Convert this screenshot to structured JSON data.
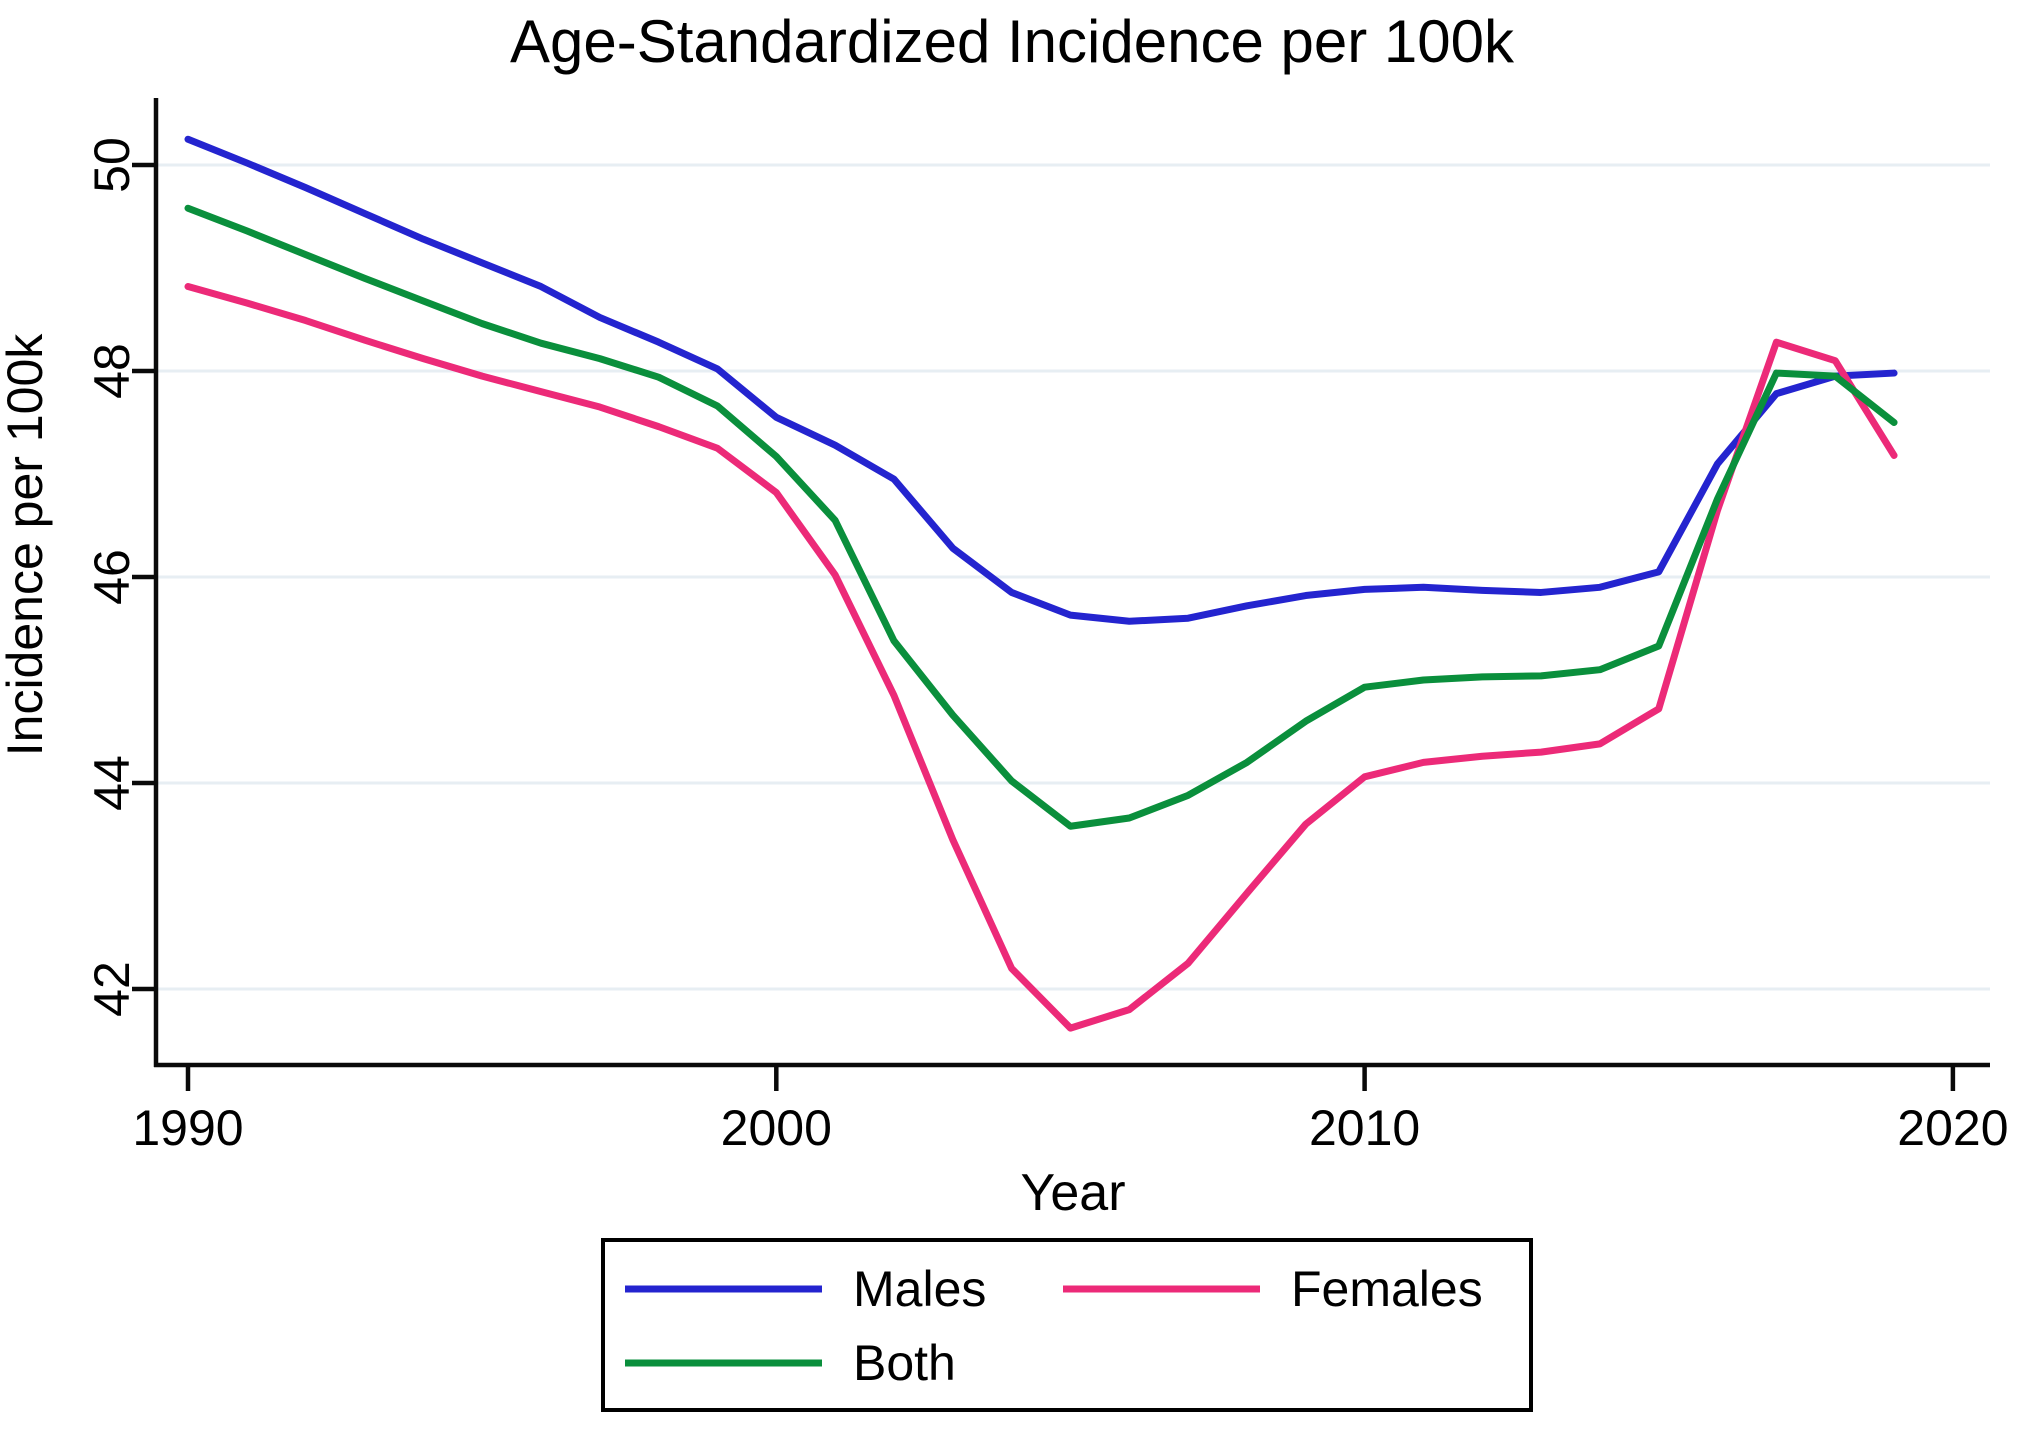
{
  "title": {
    "text": "Age-Standardized Incidence per 100k",
    "color": "#203a64"
  },
  "axes": {
    "x": {
      "label": "Year",
      "ticks": [
        1990,
        2000,
        2010,
        2020
      ]
    },
    "y": {
      "label": "Incidence per 100k",
      "ticks": [
        50,
        48,
        46,
        44,
        42
      ]
    }
  },
  "chart_data": {
    "type": "line",
    "title": "Age-Standardized Incidence per 100k",
    "xlabel": "Year",
    "ylabel": "Incidence per 100k",
    "xlim": [
      1990,
      2020
    ],
    "ylim": [
      41.3,
      50.6
    ],
    "grid": true,
    "legend_position": "bottom-box",
    "x": [
      1990,
      1991,
      1992,
      1993,
      1994,
      1995,
      1996,
      1997,
      1998,
      1999,
      2000,
      2001,
      2002,
      2003,
      2004,
      2005,
      2006,
      2007,
      2008,
      2009,
      2010,
      2011,
      2012,
      2013,
      2014,
      2015,
      2016,
      2017,
      2018,
      2019
    ],
    "series": [
      {
        "name": "Males",
        "color": "#2424cf",
        "values": [
          50.25,
          50.02,
          49.78,
          49.53,
          49.28,
          49.05,
          48.82,
          48.52,
          48.28,
          48.02,
          47.55,
          47.28,
          46.95,
          46.28,
          45.85,
          45.63,
          45.57,
          45.6,
          45.72,
          45.82,
          45.88,
          45.9,
          45.87,
          45.85,
          45.9,
          46.05,
          47.1,
          47.78,
          47.95,
          47.98
        ]
      },
      {
        "name": "Females",
        "color": "#ec2a78",
        "values": [
          48.82,
          48.66,
          48.49,
          48.3,
          48.12,
          47.95,
          47.8,
          47.65,
          47.46,
          47.25,
          46.82,
          46.02,
          44.85,
          43.45,
          42.2,
          41.62,
          41.8,
          42.25,
          42.93,
          43.6,
          44.06,
          44.2,
          44.26,
          44.3,
          44.38,
          44.72,
          46.65,
          48.28,
          48.1,
          47.18
        ]
      },
      {
        "name": "Both",
        "color": "#0a8f3c",
        "values": [
          49.58,
          49.36,
          49.13,
          48.9,
          48.68,
          48.46,
          48.27,
          48.12,
          47.94,
          47.66,
          47.17,
          46.55,
          45.38,
          44.66,
          44.02,
          43.58,
          43.66,
          43.88,
          44.2,
          44.6,
          44.93,
          45.0,
          45.03,
          45.04,
          45.1,
          45.33,
          46.76,
          47.98,
          47.95,
          47.5
        ]
      }
    ]
  },
  "legend": {
    "items": [
      {
        "label": "Males",
        "color": "#2424cf"
      },
      {
        "label": "Females",
        "color": "#ec2a78"
      },
      {
        "label": "Both",
        "color": "#0a8f3c"
      }
    ]
  },
  "style_colors": {
    "gridline": "#e7eef3",
    "axis": "#0a0a0a",
    "background": "#ffffff"
  }
}
